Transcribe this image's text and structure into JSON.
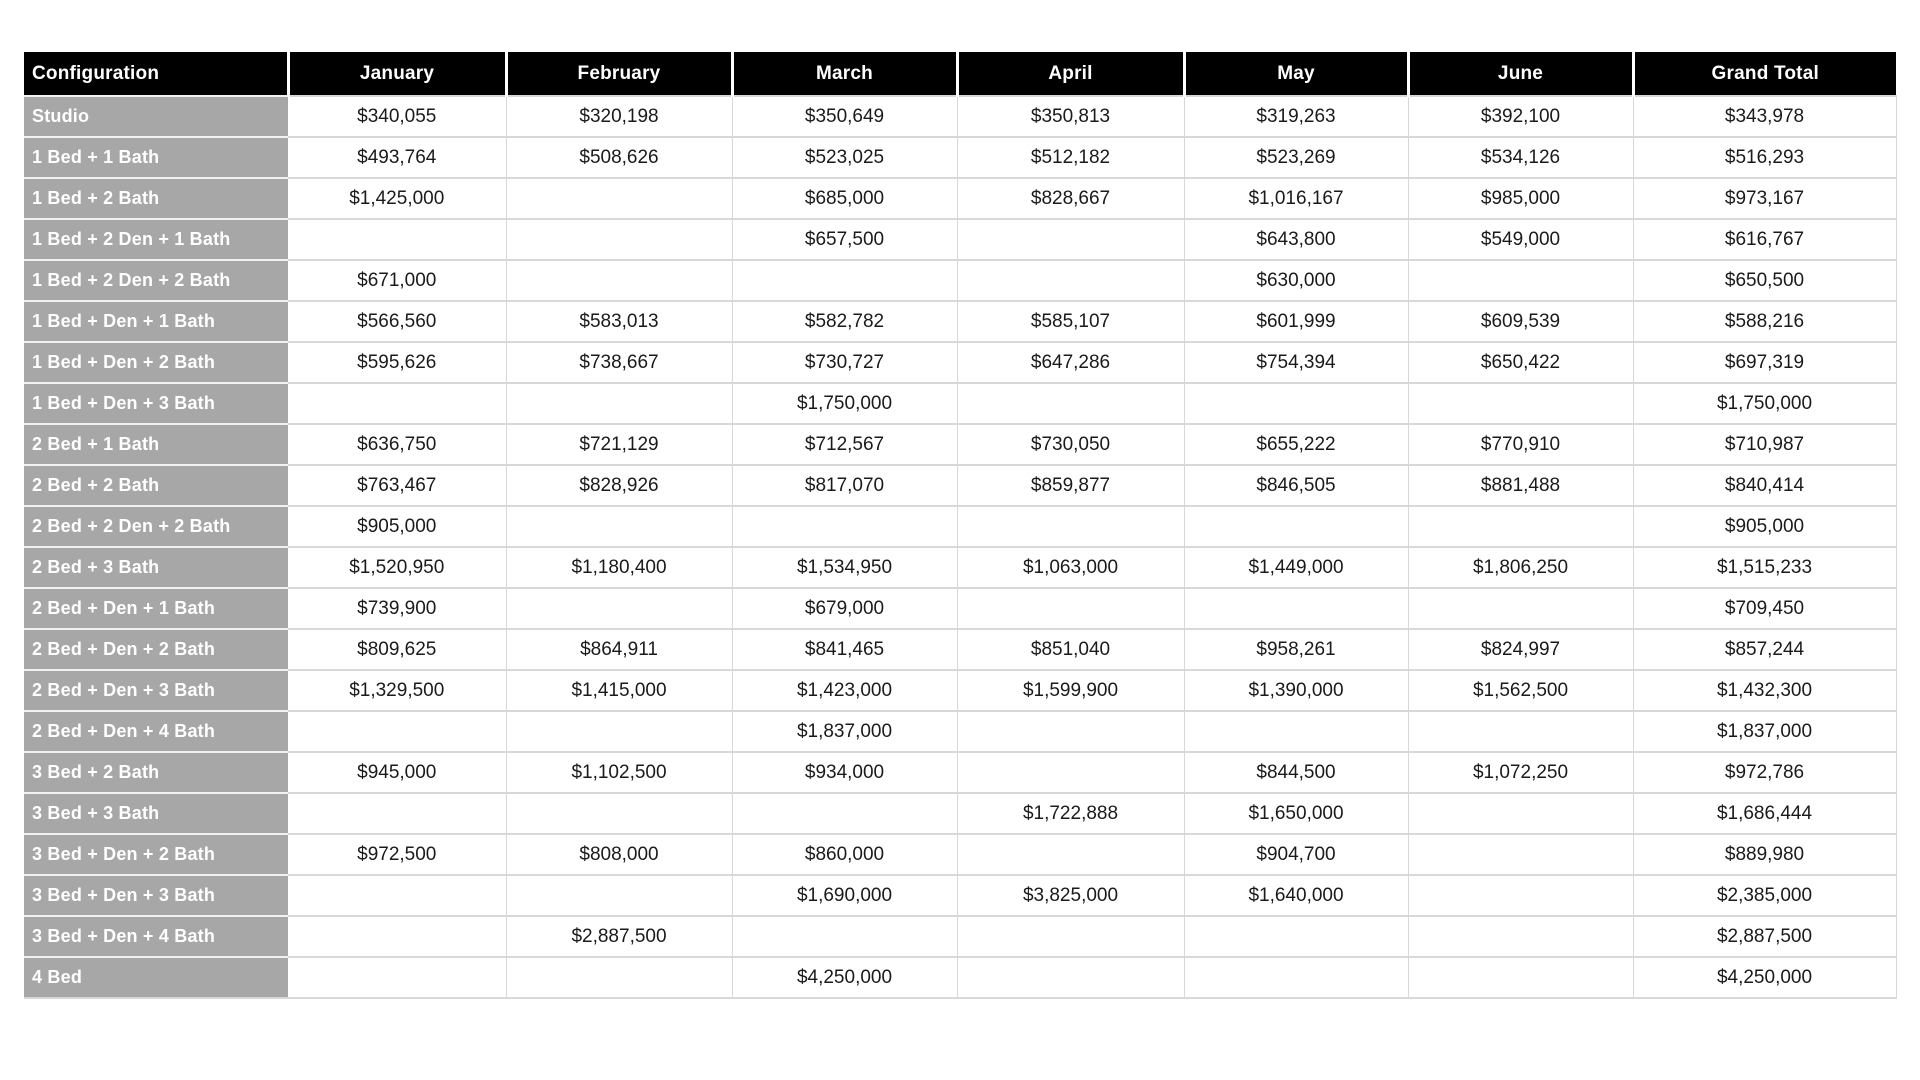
{
  "chart_data": {
    "type": "table",
    "title": "",
    "columns": [
      "Configuration",
      "January",
      "February",
      "March",
      "April",
      "May",
      "June",
      "Grand Total"
    ],
    "rows": [
      {
        "config": "Studio",
        "values": [
          "$340,055",
          "$320,198",
          "$350,649",
          "$350,813",
          "$319,263",
          "$392,100",
          "$343,978"
        ]
      },
      {
        "config": "1 Bed + 1 Bath",
        "values": [
          "$493,764",
          "$508,626",
          "$523,025",
          "$512,182",
          "$523,269",
          "$534,126",
          "$516,293"
        ]
      },
      {
        "config": "1 Bed + 2 Bath",
        "values": [
          "$1,425,000",
          "",
          "$685,000",
          "$828,667",
          "$1,016,167",
          "$985,000",
          "$973,167"
        ]
      },
      {
        "config": "1 Bed + 2 Den + 1 Bath",
        "values": [
          "",
          "",
          "$657,500",
          "",
          "$643,800",
          "$549,000",
          "$616,767"
        ]
      },
      {
        "config": "1 Bed + 2 Den + 2 Bath",
        "values": [
          "$671,000",
          "",
          "",
          "",
          "$630,000",
          "",
          "$650,500"
        ]
      },
      {
        "config": "1 Bed + Den + 1 Bath",
        "values": [
          "$566,560",
          "$583,013",
          "$582,782",
          "$585,107",
          "$601,999",
          "$609,539",
          "$588,216"
        ]
      },
      {
        "config": "1 Bed + Den + 2 Bath",
        "values": [
          "$595,626",
          "$738,667",
          "$730,727",
          "$647,286",
          "$754,394",
          "$650,422",
          "$697,319"
        ]
      },
      {
        "config": "1 Bed + Den + 3 Bath",
        "values": [
          "",
          "",
          "$1,750,000",
          "",
          "",
          "",
          "$1,750,000"
        ]
      },
      {
        "config": "2 Bed + 1 Bath",
        "values": [
          "$636,750",
          "$721,129",
          "$712,567",
          "$730,050",
          "$655,222",
          "$770,910",
          "$710,987"
        ]
      },
      {
        "config": "2 Bed + 2 Bath",
        "values": [
          "$763,467",
          "$828,926",
          "$817,070",
          "$859,877",
          "$846,505",
          "$881,488",
          "$840,414"
        ]
      },
      {
        "config": "2 Bed + 2 Den + 2 Bath",
        "values": [
          "$905,000",
          "",
          "",
          "",
          "",
          "",
          "$905,000"
        ]
      },
      {
        "config": "2 Bed + 3 Bath",
        "values": [
          "$1,520,950",
          "$1,180,400",
          "$1,534,950",
          "$1,063,000",
          "$1,449,000",
          "$1,806,250",
          "$1,515,233"
        ]
      },
      {
        "config": "2 Bed + Den + 1 Bath",
        "values": [
          "$739,900",
          "",
          "$679,000",
          "",
          "",
          "",
          "$709,450"
        ]
      },
      {
        "config": "2 Bed + Den + 2 Bath",
        "values": [
          "$809,625",
          "$864,911",
          "$841,465",
          "$851,040",
          "$958,261",
          "$824,997",
          "$857,244"
        ]
      },
      {
        "config": "2 Bed + Den + 3 Bath",
        "values": [
          "$1,329,500",
          "$1,415,000",
          "$1,423,000",
          "$1,599,900",
          "$1,390,000",
          "$1,562,500",
          "$1,432,300"
        ]
      },
      {
        "config": "2 Bed + Den + 4 Bath",
        "values": [
          "",
          "",
          "$1,837,000",
          "",
          "",
          "",
          "$1,837,000"
        ]
      },
      {
        "config": "3 Bed + 2 Bath",
        "values": [
          "$945,000",
          "$1,102,500",
          "$934,000",
          "",
          "$844,500",
          "$1,072,250",
          "$972,786"
        ]
      },
      {
        "config": "3 Bed + 3 Bath",
        "values": [
          "",
          "",
          "",
          "$1,722,888",
          "$1,650,000",
          "",
          "$1,686,444"
        ]
      },
      {
        "config": "3 Bed + Den + 2 Bath",
        "values": [
          "$972,500",
          "$808,000",
          "$860,000",
          "",
          "$904,700",
          "",
          "$889,980"
        ]
      },
      {
        "config": "3 Bed + Den + 3 Bath",
        "values": [
          "",
          "",
          "$1,690,000",
          "$3,825,000",
          "$1,640,000",
          "",
          "$2,385,000"
        ]
      },
      {
        "config": "3 Bed + Den + 4 Bath",
        "values": [
          "",
          "$2,887,500",
          "",
          "",
          "",
          "",
          "$2,887,500"
        ]
      },
      {
        "config": "4 Bed",
        "values": [
          "",
          "",
          "$4,250,000",
          "",
          "",
          "",
          "$4,250,000"
        ]
      }
    ]
  },
  "colors": {
    "background": "#ffffff",
    "header_bg": "#000000",
    "header_text": "#ffffff",
    "config_bg": "#a7a7a7",
    "config_text": "#ffffff",
    "config_divider": "#f1f1f1",
    "value_text": "#1a1a1a",
    "grid": "#d8d8d8"
  }
}
